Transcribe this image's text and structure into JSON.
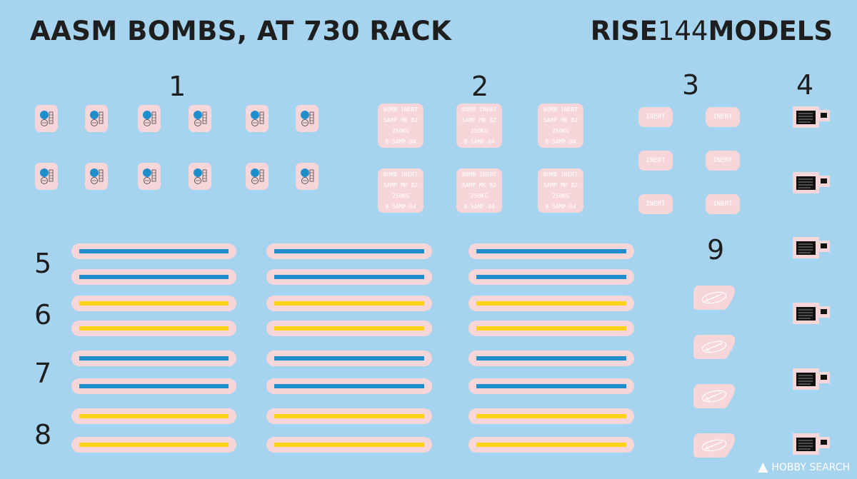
{
  "title": "AASM BOMBS, AT 730 RACK",
  "brand": {
    "prefix": "RISE",
    "number": "144",
    "suffix": "MODELS"
  },
  "set_numbers": {
    "n1": "1",
    "n2": "2",
    "n3": "3",
    "n4": "4",
    "n5": "5",
    "n6": "6",
    "n7": "7",
    "n8": "8",
    "n9": "9"
  },
  "set2_lines": [
    "BOMB INERT",
    "SAMP MK 82",
    "250KG",
    "B-SAMP-04"
  ],
  "set3_label": "INERT",
  "colors": {
    "background": "#a6d3ee",
    "decal_film": "#f7d6da",
    "blue_stripe": "#1f8fcc",
    "yellow_stripe": "#ffd21a"
  },
  "icons": {
    "set1": "aasm-emblem-icon",
    "set4": "stencil-data-icon",
    "set9": "warhead-outline-icon"
  },
  "watermark": "HOBBY SEARCH"
}
